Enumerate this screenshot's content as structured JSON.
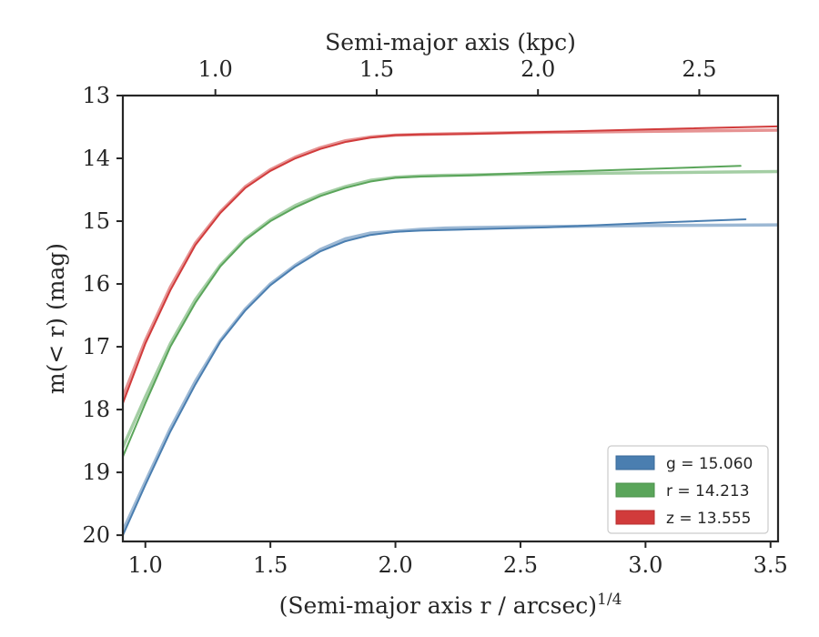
{
  "chart_data": {
    "type": "line",
    "title": "",
    "xlabel": "(Semi-major axis r / arcsec)",
    "xlabel_sup": "1/4",
    "ylabel": "m(< r) (mag)",
    "top_xlabel": "Semi-major axis (kpc)",
    "xlim": [
      0.91,
      3.53
    ],
    "ylim": [
      20.1,
      13.0
    ],
    "y_inverted": true,
    "xticks": [
      1.0,
      1.5,
      2.0,
      2.5,
      3.0,
      3.5
    ],
    "xtick_labels": [
      "1.0",
      "1.5",
      "2.0",
      "2.5",
      "3.0",
      "3.5"
    ],
    "yticks": [
      13,
      14,
      15,
      16,
      17,
      18,
      19,
      20
    ],
    "ytick_labels": [
      "13",
      "14",
      "15",
      "16",
      "17",
      "18",
      "19",
      "20"
    ],
    "top_xticks": [
      1.0,
      1.5,
      2.0,
      2.5
    ],
    "top_xtick_labels": [
      "1.0",
      "1.5",
      "2.0",
      "2.5"
    ],
    "top_xtick_positions": [
      1.28,
      1.925,
      2.57,
      3.215
    ],
    "grid": false,
    "legend_position": "lower-right",
    "legend_labels": [
      "g = 15.060",
      "r = 14.213",
      "z = 13.555"
    ],
    "series": [
      {
        "name": "g = 15.060",
        "color": "#4a7eb0",
        "model": {
          "x": [
            0.91,
            1.0,
            1.1,
            1.2,
            1.3,
            1.4,
            1.5,
            1.6,
            1.7,
            1.8,
            1.9,
            2.0,
            2.1,
            2.2,
            2.5,
            3.0,
            3.53
          ],
          "y": [
            19.93,
            19.15,
            18.3,
            17.55,
            16.9,
            16.4,
            16.0,
            15.7,
            15.45,
            15.28,
            15.19,
            15.16,
            15.13,
            15.11,
            15.09,
            15.07,
            15.06
          ]
        },
        "data": {
          "x": [
            0.91,
            1.0,
            1.1,
            1.2,
            1.3,
            1.4,
            1.5,
            1.6,
            1.7,
            1.8,
            1.9,
            2.0,
            2.1,
            2.3,
            2.6,
            3.0,
            3.4
          ],
          "y": [
            20.0,
            19.2,
            18.35,
            17.6,
            16.92,
            16.42,
            16.02,
            15.72,
            15.48,
            15.32,
            15.22,
            15.17,
            15.15,
            15.13,
            15.1,
            15.03,
            14.97
          ]
        }
      },
      {
        "name": "r = 14.213",
        "color": "#5aa55a",
        "model": {
          "x": [
            0.91,
            1.0,
            1.1,
            1.2,
            1.3,
            1.4,
            1.5,
            1.6,
            1.7,
            1.8,
            1.9,
            2.0,
            2.1,
            2.2,
            2.5,
            3.0,
            3.53
          ],
          "y": [
            18.6,
            17.8,
            16.95,
            16.25,
            15.7,
            15.28,
            14.98,
            14.75,
            14.58,
            14.45,
            14.35,
            14.3,
            14.28,
            14.27,
            14.25,
            14.23,
            14.21
          ]
        },
        "data": {
          "x": [
            0.91,
            1.0,
            1.1,
            1.2,
            1.3,
            1.4,
            1.5,
            1.6,
            1.7,
            1.8,
            1.9,
            2.0,
            2.1,
            2.3,
            2.6,
            3.0,
            3.38
          ],
          "y": [
            18.75,
            17.9,
            17.0,
            16.3,
            15.72,
            15.3,
            15.0,
            14.78,
            14.6,
            14.47,
            14.37,
            14.31,
            14.29,
            14.27,
            14.22,
            14.17,
            14.12
          ]
        }
      },
      {
        "name": "z = 13.555",
        "color": "#d13b3b",
        "model": {
          "x": [
            0.91,
            1.0,
            1.1,
            1.2,
            1.3,
            1.4,
            1.5,
            1.6,
            1.7,
            1.8,
            1.9,
            2.0,
            2.1,
            2.2,
            2.5,
            3.0,
            3.53
          ],
          "y": [
            17.8,
            16.9,
            16.05,
            15.35,
            14.85,
            14.45,
            14.18,
            13.98,
            13.83,
            13.72,
            13.66,
            13.63,
            13.62,
            13.61,
            13.59,
            13.57,
            13.55
          ]
        },
        "data": {
          "x": [
            0.91,
            1.0,
            1.1,
            1.2,
            1.3,
            1.4,
            1.5,
            1.6,
            1.7,
            1.8,
            1.9,
            2.0,
            2.1,
            2.3,
            2.6,
            3.0,
            3.53
          ],
          "y": [
            17.9,
            16.95,
            16.1,
            15.38,
            14.87,
            14.47,
            14.2,
            14.0,
            13.85,
            13.74,
            13.67,
            13.63,
            13.62,
            13.61,
            13.58,
            13.54,
            13.49
          ]
        }
      }
    ]
  }
}
